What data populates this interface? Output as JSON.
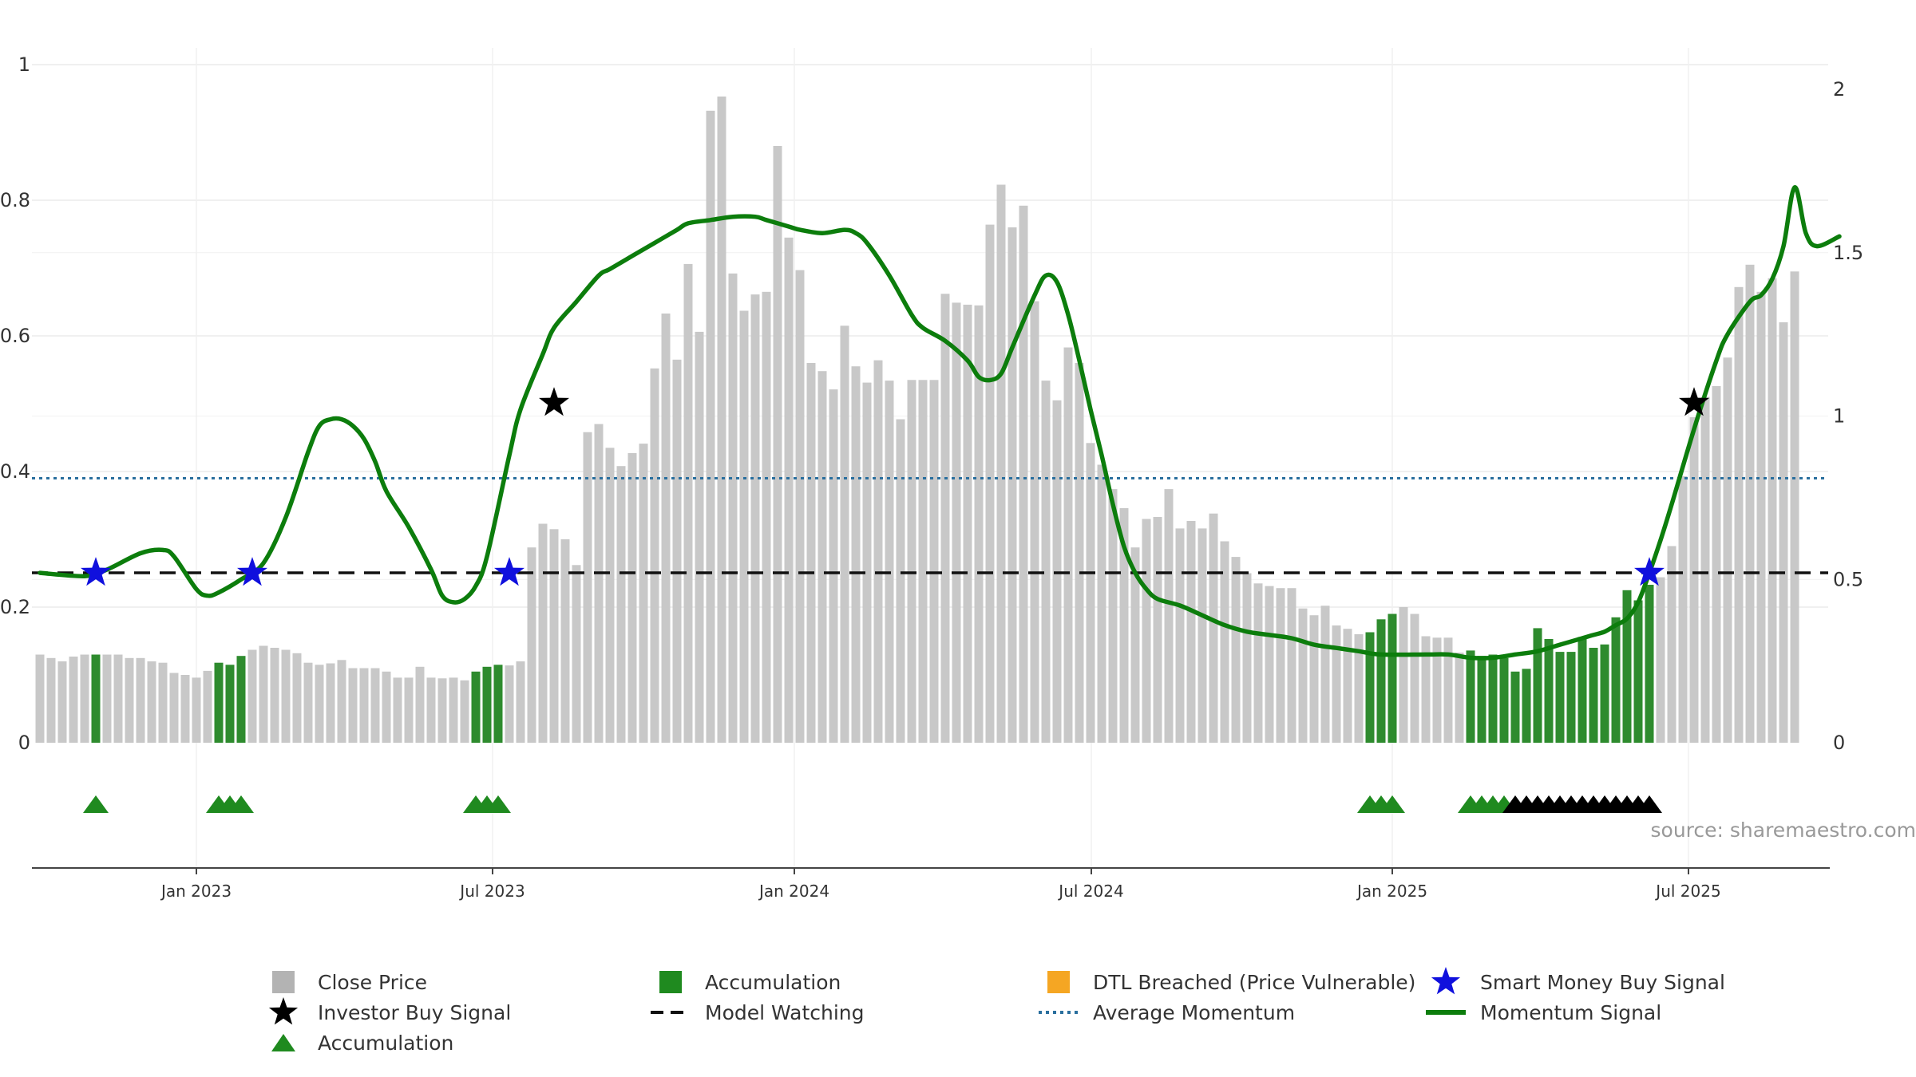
{
  "chart_data": {
    "type": "bar",
    "title": "",
    "source_text": "source: sharemaestro.com",
    "left_axis": {
      "ylim": [
        0,
        1
      ],
      "ticks": [
        "0",
        "0.2",
        "0.4",
        "0.6",
        "0.8",
        "1"
      ]
    },
    "right_axis": {
      "ylim": [
        0,
        2
      ],
      "ticks": [
        "0",
        "0.5",
        "1",
        "1.5",
        "2"
      ]
    },
    "x_ticks": [
      "Jan 2023",
      "Jul 2023",
      "Jan 2024",
      "Jul 2024",
      "Jan 2025",
      "Jul 2025"
    ],
    "grid": true,
    "legend_position": "bottom",
    "series": [
      {
        "name": "Close Price",
        "color": "#c8c8c8",
        "accumulation_color": "#2e8b2e",
        "values": [
          0.13,
          0.125,
          0.12,
          0.127,
          0.13,
          0.13,
          0.13,
          0.13,
          0.125,
          0.125,
          0.12,
          0.118,
          0.103,
          0.1,
          0.096,
          0.106,
          0.118,
          0.115,
          0.128,
          0.137,
          0.143,
          0.14,
          0.137,
          0.132,
          0.118,
          0.115,
          0.117,
          0.122,
          0.11,
          0.11,
          0.11,
          0.105,
          0.096,
          0.096,
          0.112,
          0.096,
          0.095,
          0.096,
          0.092,
          0.105,
          0.112,
          0.115,
          0.114,
          0.12,
          0.288,
          0.323,
          0.315,
          0.3,
          0.262,
          0.458,
          0.47,
          0.435,
          0.408,
          0.427,
          0.441,
          0.552,
          0.633,
          0.565,
          0.706,
          0.606,
          0.932,
          0.953,
          0.692,
          0.637,
          0.661,
          0.665,
          0.88,
          0.745,
          0.697,
          0.56,
          0.548,
          0.521,
          0.615,
          0.555,
          0.531,
          0.564,
          0.534,
          0.477,
          0.535,
          0.535,
          0.535,
          0.662,
          0.649,
          0.646,
          0.645,
          0.764,
          0.823,
          0.76,
          0.792,
          0.651,
          0.534,
          0.505,
          0.583,
          0.56,
          0.442,
          0.41,
          0.374,
          0.346,
          0.288,
          0.33,
          0.333,
          0.374,
          0.316,
          0.327,
          0.316,
          0.338,
          0.297,
          0.274,
          0.25,
          0.235,
          0.231,
          0.228,
          0.228,
          0.198,
          0.188,
          0.202,
          0.173,
          0.168,
          0.16,
          0.163,
          0.182,
          0.19,
          0.2,
          0.19,
          0.157,
          0.155,
          0.155,
          0.133,
          0.136,
          0.128,
          0.13,
          0.125,
          0.105,
          0.109,
          0.169,
          0.153,
          0.134,
          0.134,
          0.156,
          0.14,
          0.145,
          0.185,
          0.225,
          0.21,
          0.233,
          0.244,
          0.29,
          0.393,
          0.48,
          0.51,
          0.526,
          0.568,
          0.672,
          0.705,
          0.665,
          0.685,
          0.62,
          0.695
        ]
      },
      {
        "name": "Momentum Signal",
        "color": "#0c7d0c",
        "axis": "right",
        "points": [
          [
            0,
            0.52
          ],
          [
            4,
            0.51
          ],
          [
            6,
            0.53
          ],
          [
            9,
            0.58
          ],
          [
            11,
            0.59
          ],
          [
            12,
            0.57
          ],
          [
            14,
            0.47
          ],
          [
            15,
            0.45
          ],
          [
            16,
            0.46
          ],
          [
            18,
            0.5
          ],
          [
            20,
            0.55
          ],
          [
            22,
            0.69
          ],
          [
            24,
            0.89
          ],
          [
            25,
            0.97
          ],
          [
            26,
            0.99
          ],
          [
            27,
            0.99
          ],
          [
            28,
            0.97
          ],
          [
            29,
            0.93
          ],
          [
            30,
            0.86
          ],
          [
            31,
            0.77
          ],
          [
            33,
            0.66
          ],
          [
            35,
            0.53
          ],
          [
            36,
            0.45
          ],
          [
            37,
            0.43
          ],
          [
            38,
            0.44
          ],
          [
            39,
            0.48
          ],
          [
            40,
            0.57
          ],
          [
            42,
            0.88
          ],
          [
            43,
            1.02
          ],
          [
            45,
            1.19
          ],
          [
            46,
            1.27
          ],
          [
            48,
            1.35
          ],
          [
            50,
            1.43
          ],
          [
            51,
            1.45
          ],
          [
            53,
            1.49
          ],
          [
            55,
            1.53
          ],
          [
            57,
            1.57
          ],
          [
            58,
            1.59
          ],
          [
            60,
            1.6
          ],
          [
            62,
            1.61
          ],
          [
            64,
            1.61
          ],
          [
            65,
            1.6
          ],
          [
            67,
            1.58
          ],
          [
            68,
            1.57
          ],
          [
            70,
            1.56
          ],
          [
            72,
            1.57
          ],
          [
            73,
            1.56
          ],
          [
            74,
            1.53
          ],
          [
            76,
            1.43
          ],
          [
            78,
            1.31
          ],
          [
            79,
            1.27
          ],
          [
            81,
            1.23
          ],
          [
            83,
            1.17
          ],
          [
            84,
            1.12
          ],
          [
            85,
            1.11
          ],
          [
            86,
            1.13
          ],
          [
            87,
            1.21
          ],
          [
            89,
            1.37
          ],
          [
            90,
            1.43
          ],
          [
            91,
            1.41
          ],
          [
            92,
            1.31
          ],
          [
            93,
            1.17
          ],
          [
            94,
            1.02
          ],
          [
            95,
            0.88
          ],
          [
            96,
            0.73
          ],
          [
            97,
            0.6
          ],
          [
            98,
            0.52
          ],
          [
            99,
            0.47
          ],
          [
            100,
            0.44
          ],
          [
            102,
            0.42
          ],
          [
            104,
            0.39
          ],
          [
            106,
            0.36
          ],
          [
            108,
            0.34
          ],
          [
            110,
            0.33
          ],
          [
            112,
            0.32
          ],
          [
            114,
            0.3
          ],
          [
            116,
            0.29
          ],
          [
            118,
            0.28
          ],
          [
            120,
            0.27
          ],
          [
            124,
            0.27
          ],
          [
            126,
            0.27
          ],
          [
            128,
            0.26
          ],
          [
            130,
            0.26
          ],
          [
            132,
            0.27
          ],
          [
            134,
            0.28
          ],
          [
            136,
            0.3
          ],
          [
            138,
            0.32
          ],
          [
            139,
            0.33
          ],
          [
            140,
            0.34
          ],
          [
            141,
            0.36
          ],
          [
            142,
            0.38
          ],
          [
            143,
            0.43
          ],
          [
            144,
            0.52
          ],
          [
            145,
            0.62
          ],
          [
            146,
            0.73
          ],
          [
            148,
            0.96
          ],
          [
            150,
            1.17
          ],
          [
            151,
            1.25
          ],
          [
            153,
            1.35
          ],
          [
            154,
            1.37
          ],
          [
            155,
            1.42
          ],
          [
            156,
            1.52
          ],
          [
            157,
            1.7
          ],
          [
            158,
            1.56
          ],
          [
            159,
            1.52
          ],
          [
            161,
            1.55
          ]
        ]
      },
      {
        "name": "Model Watching",
        "color": "#111111",
        "axis": "right",
        "value": 0.52,
        "dash": "long"
      },
      {
        "name": "Average Momentum",
        "color": "#2a6f9e",
        "axis": "left",
        "value": 0.39,
        "dash": "dotted"
      },
      {
        "name": "Smart Money Buy Signal",
        "color": "#1010dd",
        "axis": "right",
        "points": [
          [
            5,
            0.52
          ],
          [
            19,
            0.52
          ],
          [
            42,
            0.52
          ],
          [
            144,
            0.52
          ]
        ]
      },
      {
        "name": "Investor Buy Signal",
        "color": "#000000",
        "axis": "right",
        "points": [
          [
            46,
            1.04
          ],
          [
            148,
            1.04
          ]
        ]
      },
      {
        "name": "Accumulation",
        "color": "#1f8a1f",
        "indices": [
          5,
          16,
          17,
          18,
          39,
          40,
          41,
          119,
          120,
          121,
          128,
          129,
          130,
          131,
          132,
          133,
          134,
          135,
          136,
          137,
          138,
          139,
          140,
          141,
          142,
          143,
          144
        ]
      },
      {
        "name": "DTL Breached (Price Vulnerable)",
        "color": "#f5a623",
        "values": []
      }
    ],
    "marker_rows": {
      "green_triangles": [
        5,
        16,
        17,
        18,
        39,
        40,
        41,
        119,
        120,
        121,
        128,
        129,
        130,
        131
      ],
      "black_triangles": [
        132,
        133,
        134,
        135,
        136,
        137,
        138,
        139,
        140,
        141,
        142,
        143,
        144
      ]
    }
  },
  "legend": [
    {
      "label": "Close Price",
      "symbol": "square",
      "color": "#b3b3b3"
    },
    {
      "label": "Accumulation",
      "symbol": "square",
      "color": "#1f8a1f"
    },
    {
      "label": "DTL Breached (Price Vulnerable)",
      "symbol": "square",
      "color": "#f5a623"
    },
    {
      "label": "Smart Money Buy Signal",
      "symbol": "star",
      "color": "#1010dd"
    },
    {
      "label": "Investor Buy Signal",
      "symbol": "star",
      "color": "#000000"
    },
    {
      "label": "Model Watching",
      "symbol": "dash",
      "color": "#111111"
    },
    {
      "label": "Average Momentum",
      "symbol": "dotted",
      "color": "#2a6f9e"
    },
    {
      "label": "Momentum Signal",
      "symbol": "line",
      "color": "#0c7d0c"
    },
    {
      "label": "Accumulation",
      "symbol": "triangle",
      "color": "#1f8a1f"
    }
  ]
}
